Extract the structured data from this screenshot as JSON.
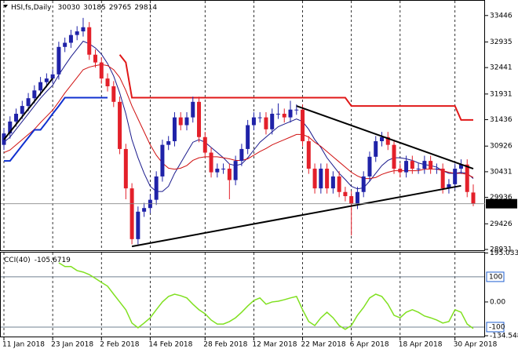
{
  "chart_data": [
    {
      "type": "candlestick",
      "title": "HSI,fs,Daily",
      "categories": [
        "11 Jan 2018",
        null,
        null,
        null,
        null,
        null,
        null,
        null,
        "23 Jan 2018",
        null,
        null,
        null,
        null,
        null,
        null,
        null,
        "2 Feb 2018",
        null,
        null,
        null,
        null,
        null,
        null,
        null,
        "14 Feb 2018",
        null,
        null,
        null,
        null,
        null,
        null,
        null,
        null,
        "28 Feb 2018",
        null,
        null,
        null,
        null,
        null,
        null,
        null,
        "12 Mar 2018",
        null,
        null,
        null,
        null,
        null,
        null,
        null,
        "22 Mar 2018",
        null,
        null,
        null,
        null,
        null,
        null,
        null,
        "6 Apr 2018",
        null,
        null,
        null,
        null,
        null,
        null,
        null,
        "18 Apr 2018",
        null,
        null,
        null,
        null,
        null,
        null,
        null,
        null,
        "30 Apr 2018",
        null,
        null,
        null
      ],
      "open": [
        30950,
        31170,
        31400,
        31550,
        31700,
        31850,
        32000,
        32160,
        32230,
        32310,
        32840,
        32920,
        33070,
        33140,
        33220,
        32690,
        32540,
        32230,
        32080,
        31780,
        30870,
        30110,
        29130,
        29660,
        29730,
        29890,
        30340,
        30950,
        31020,
        31480,
        31330,
        31480,
        31780,
        31100,
        30800,
        30420,
        30490,
        30490,
        30270,
        30640,
        30870,
        31330,
        31480,
        31480,
        31250,
        31550,
        31550,
        31480,
        31630,
        31630,
        31020,
        30490,
        30110,
        30490,
        30110,
        30340,
        30040,
        29960,
        29810,
        30040,
        30340,
        30720,
        31020,
        31100,
        30950,
        30490,
        30420,
        30640,
        30490,
        30490,
        30640,
        30490,
        30490,
        30110,
        30190,
        30490,
        30570,
        30030
      ],
      "high": [
        31270,
        31500,
        31650,
        31800,
        31950,
        32100,
        32260,
        32330,
        32410,
        32940,
        33020,
        33170,
        33240,
        33400,
        33320,
        32790,
        32640,
        32330,
        32180,
        31880,
        30970,
        30210,
        29760,
        29830,
        29990,
        30440,
        31050,
        31120,
        31580,
        31580,
        31580,
        31880,
        31880,
        31200,
        30900,
        30590,
        30590,
        30590,
        30740,
        30970,
        31430,
        31580,
        31580,
        31580,
        31650,
        31750,
        31650,
        31800,
        31730,
        31730,
        31120,
        30590,
        30590,
        30590,
        30440,
        30440,
        30140,
        30060,
        30140,
        30440,
        30820,
        31120,
        31200,
        31200,
        31050,
        30590,
        30740,
        30740,
        30590,
        30740,
        30740,
        30590,
        30590,
        30290,
        30590,
        30670,
        30670,
        30185
      ],
      "low": [
        30850,
        31070,
        31300,
        31450,
        31600,
        31750,
        31900,
        32060,
        32130,
        32210,
        32740,
        32820,
        32970,
        33040,
        32590,
        32440,
        32130,
        31980,
        31680,
        30770,
        29900,
        29030,
        29030,
        29560,
        29630,
        29790,
        30240,
        30850,
        30920,
        31230,
        31230,
        31380,
        31000,
        30700,
        30320,
        30320,
        30390,
        29900,
        30170,
        30540,
        30770,
        31230,
        31380,
        31150,
        31150,
        31450,
        31380,
        31380,
        31530,
        30920,
        30390,
        30010,
        30010,
        30010,
        30010,
        29940,
        29860,
        29200,
        29710,
        29940,
        30240,
        30620,
        30920,
        30850,
        30390,
        30320,
        30320,
        30390,
        30390,
        30390,
        30390,
        30390,
        30010,
        30010,
        30090,
        30390,
        29940,
        29765
      ],
      "close": [
        31170,
        31400,
        31550,
        31700,
        31850,
        32000,
        32160,
        32230,
        32310,
        32840,
        32920,
        33070,
        33140,
        33220,
        32690,
        32540,
        32230,
        32080,
        31780,
        30870,
        30110,
        29130,
        29660,
        29730,
        29890,
        30340,
        30950,
        31020,
        31480,
        31330,
        31480,
        31780,
        31100,
        30800,
        30420,
        30490,
        30490,
        30270,
        30640,
        30870,
        31330,
        31480,
        31480,
        31250,
        31550,
        31550,
        31480,
        31630,
        31630,
        31020,
        30490,
        30110,
        30490,
        30110,
        30340,
        30040,
        29960,
        29810,
        30040,
        30340,
        30720,
        31020,
        31100,
        30950,
        30490,
        30420,
        30640,
        30490,
        30490,
        30640,
        30490,
        30490,
        30110,
        30190,
        30490,
        30570,
        30040,
        29814
      ],
      "up_color": "#1f22a8",
      "down_color": "#e3202a",
      "series": [
        {
          "color": "#1a1a8c",
          "values": [
            31000,
            31100,
            31250,
            31400,
            31550,
            31700,
            31850,
            31980,
            32100,
            32300,
            32480,
            32650,
            32800,
            32950,
            32900,
            32820,
            32700,
            32520,
            32280,
            31950,
            31550,
            31050,
            30700,
            30400,
            30150,
            30050,
            30050,
            30150,
            30400,
            30600,
            30800,
            31000,
            31050,
            31000,
            30900,
            30800,
            30700,
            30580,
            30550,
            30580,
            30700,
            30850,
            31000,
            31100,
            31200,
            31300,
            31350,
            31400,
            31450,
            31400,
            31250,
            31050,
            30900,
            30700,
            30550,
            30400,
            30280,
            30150,
            30100,
            30120,
            30250,
            30400,
            30550,
            30650,
            30700,
            30700,
            30680,
            30650,
            30600,
            30570,
            30550,
            30520,
            30450,
            30400,
            30400,
            30420,
            30400,
            30300
          ]
        },
        {
          "color": "#d01010",
          "values": [
            30800,
            30850,
            30950,
            31050,
            31150,
            31250,
            31380,
            31500,
            31620,
            31780,
            31950,
            32100,
            32250,
            32400,
            32450,
            32480,
            32500,
            32480,
            32400,
            32250,
            32000,
            31700,
            31450,
            31200,
            30950,
            30750,
            30600,
            30500,
            30480,
            30500,
            30550,
            30650,
            30700,
            30720,
            30720,
            30720,
            30700,
            30680,
            30650,
            30650,
            30680,
            30750,
            30820,
            30880,
            30950,
            31000,
            31050,
            31100,
            31150,
            31150,
            31100,
            31000,
            30920,
            30820,
            30720,
            30620,
            30520,
            30420,
            30350,
            30300,
            30300,
            30320,
            30380,
            30420,
            30450,
            30450,
            30450,
            30450,
            30450,
            30480,
            30480,
            30480,
            30450,
            30420,
            30400,
            30400,
            30380,
            30320
          ]
        },
        {
          "color": "#1030d0",
          "width": 2,
          "values": [
            30640,
            30640,
            30790,
            30940,
            31090,
            31240,
            31240,
            31390,
            31550,
            31700,
            31860,
            31860,
            31860,
            31860,
            31860,
            31860,
            31860,
            31860,
            null,
            null,
            null,
            null,
            null,
            null,
            null,
            null,
            null,
            null,
            null,
            null,
            null,
            null,
            null,
            null,
            null,
            null,
            null,
            null,
            null,
            null,
            null,
            null,
            null,
            null,
            null,
            null,
            null,
            null,
            null,
            null,
            null,
            null,
            null,
            null,
            null,
            null,
            null,
            null,
            null,
            null,
            null,
            null,
            null,
            null,
            null,
            null,
            null,
            null,
            null,
            null,
            null,
            null,
            null,
            null,
            null,
            null,
            null,
            null
          ]
        },
        {
          "color": "#e01818",
          "width": 2,
          "values": [
            null,
            null,
            null,
            null,
            null,
            null,
            null,
            null,
            null,
            null,
            null,
            null,
            null,
            null,
            null,
            null,
            null,
            null,
            null,
            32690,
            32540,
            31860,
            31860,
            31860,
            31860,
            31860,
            31860,
            31860,
            31860,
            31860,
            31860,
            31860,
            31860,
            31860,
            31860,
            31860,
            31860,
            31860,
            31860,
            31860,
            31860,
            31860,
            31860,
            31860,
            31860,
            31860,
            31860,
            31860,
            31860,
            31860,
            31860,
            31860,
            31860,
            31860,
            31860,
            31860,
            31860,
            31700,
            31700,
            31700,
            31700,
            31700,
            31700,
            31700,
            31700,
            31700,
            31700,
            31700,
            31700,
            31700,
            31700,
            31700,
            31700,
            31700,
            31700,
            31430,
            31430,
            31430
          ]
        }
      ],
      "trendlines": [
        {
          "start_bar": 0,
          "start_price": 31050,
          "end_bar": 8,
          "end_price": 32234
        },
        {
          "start_bar": 21,
          "start_price": 28990,
          "end_bar": 75,
          "end_price": 30160
        },
        {
          "start_bar": 48,
          "start_price": 31700,
          "end_bar": 77,
          "end_price": 30490
        }
      ],
      "ylim": [
        28931,
        33700
      ],
      "yticks": [
        33446,
        32935,
        32441,
        31931,
        31436,
        30926,
        30431,
        29936,
        29426,
        28931
      ],
      "grid": true
    },
    {
      "type": "line",
      "title": "CCI(40)",
      "color": "#80e020",
      "values": [
        null,
        null,
        null,
        null,
        null,
        null,
        null,
        null,
        null,
        156,
        141,
        141,
        125,
        119,
        109,
        94,
        78,
        63,
        31,
        0,
        -31,
        -84,
        -103,
        -84,
        -63,
        -31,
        0,
        22,
        31,
        25,
        16,
        -9,
        -31,
        -47,
        -72,
        -88,
        -88,
        -78,
        -63,
        -41,
        -16,
        6,
        16,
        -9,
        0,
        3,
        9,
        16,
        22,
        -31,
        -78,
        -94,
        -63,
        -41,
        -63,
        -94,
        -109,
        -94,
        -53,
        -22,
        16,
        31,
        22,
        -9,
        -53,
        -63,
        -41,
        -31,
        -41,
        -56,
        -63,
        -72,
        -84,
        -78,
        -31,
        -41,
        -88,
        -105.6719
      ],
      "ylim": [
        -134.548,
        195.0338
      ],
      "yticks": [
        195.0338,
        {
          "value": 0,
          "label": "0.00"
        },
        -134.548
      ],
      "levels": [
        100,
        -100
      ]
    }
  ]
}
